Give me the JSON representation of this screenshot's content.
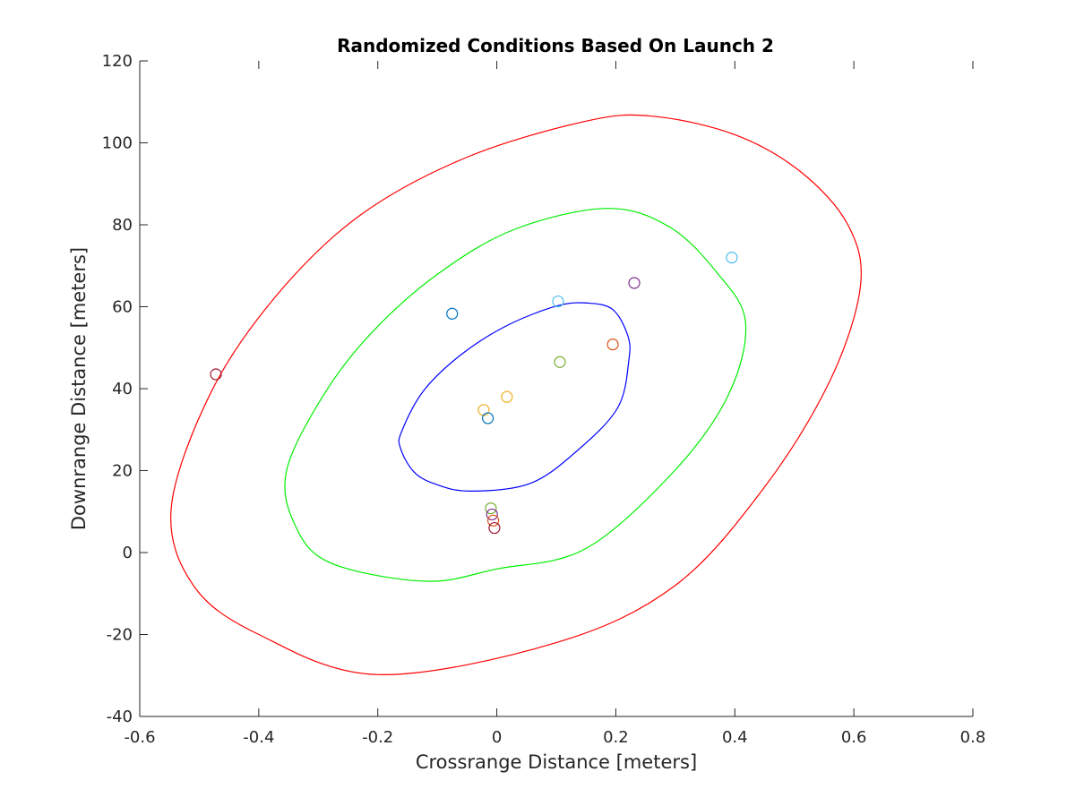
{
  "chart_data": {
    "type": "scatter",
    "title": "Randomized Conditions Based On Launch 2",
    "xlabel": "Crossrange Distance [meters]",
    "ylabel": "Downrange Distance [meters]",
    "xlim": [
      -0.6,
      0.8
    ],
    "ylim": [
      -40,
      120
    ],
    "xticks": [
      "-0.6",
      "-0.4",
      "-0.2",
      "0",
      "0.2",
      "0.4",
      "0.6",
      "0.8"
    ],
    "yticks": [
      "-40",
      "-20",
      "0",
      "20",
      "40",
      "60",
      "80",
      "100",
      "120"
    ],
    "grid": false,
    "legend": "none",
    "points": [
      {
        "x": -0.075,
        "y": 58.3,
        "color": "#0072BD"
      },
      {
        "x": 0.103,
        "y": 61.3,
        "color": "#4DBEEE"
      },
      {
        "x": 0.395,
        "y": 72.0,
        "color": "#4DBEEE"
      },
      {
        "x": 0.231,
        "y": 65.8,
        "color": "#7E2F8E"
      },
      {
        "x": 0.195,
        "y": 50.8,
        "color": "#D95319"
      },
      {
        "x": 0.106,
        "y": 46.5,
        "color": "#77AC30"
      },
      {
        "x": 0.017,
        "y": 38.0,
        "color": "#EDB120"
      },
      {
        "x": -0.022,
        "y": 34.8,
        "color": "#EDB120"
      },
      {
        "x": -0.015,
        "y": 32.8,
        "color": "#0072BD"
      },
      {
        "x": -0.472,
        "y": 43.5,
        "color": "#A2142F"
      },
      {
        "x": -0.01,
        "y": 10.8,
        "color": "#77AC30"
      },
      {
        "x": -0.008,
        "y": 9.3,
        "color": "#7E2F8E"
      },
      {
        "x": -0.006,
        "y": 7.8,
        "color": "#D95319"
      },
      {
        "x": -0.004,
        "y": 6.0,
        "color": "#A2142F"
      }
    ],
    "ellipses": [
      {
        "color": "#0000FF",
        "points": [
          [
            -0.16,
            29.5
          ],
          [
            -0.123,
            39.5
          ],
          [
            -0.06,
            48.3
          ],
          [
            0.017,
            55.4
          ],
          [
            0.101,
            60.2
          ],
          [
            0.153,
            60.9
          ],
          [
            0.195,
            59.3
          ],
          [
            0.22,
            53.0
          ],
          [
            0.222,
            47.0
          ],
          [
            0.203,
            35.3
          ],
          [
            0.133,
            24.6
          ],
          [
            0.055,
            16.8
          ],
          [
            -0.046,
            15.0
          ],
          [
            -0.105,
            16.8
          ],
          [
            -0.14,
            19.8
          ],
          [
            -0.162,
            25.5
          ],
          [
            -0.16,
            29.5
          ]
        ]
      },
      {
        "color": "#00EE00",
        "points": [
          [
            -0.353,
            20.2
          ],
          [
            -0.29,
            38.7
          ],
          [
            -0.21,
            53.7
          ],
          [
            -0.1,
            67.9
          ],
          [
            0.03,
            78.9
          ],
          [
            0.185,
            84.0
          ],
          [
            0.29,
            79.5
          ],
          [
            0.37,
            68.3
          ],
          [
            0.418,
            56.3
          ],
          [
            0.39,
            38.7
          ],
          [
            0.3,
            20.2
          ],
          [
            0.15,
            1.0
          ],
          [
            0.0,
            -4.0
          ],
          [
            -0.12,
            -7.0
          ],
          [
            -0.28,
            -2.5
          ],
          [
            -0.34,
            7.0
          ],
          [
            -0.353,
            20.2
          ]
        ]
      },
      {
        "color": "#FF0000",
        "points": [
          [
            -0.547,
            11.0
          ],
          [
            -0.48,
            39.2
          ],
          [
            -0.37,
            62.8
          ],
          [
            -0.23,
            82.3
          ],
          [
            -0.05,
            96.5
          ],
          [
            0.15,
            105.3
          ],
          [
            0.262,
            106.5
          ],
          [
            0.4,
            102.0
          ],
          [
            0.51,
            93.0
          ],
          [
            0.59,
            80.0
          ],
          [
            0.611,
            65.0
          ],
          [
            0.56,
            42.0
          ],
          [
            0.45,
            16.0
          ],
          [
            0.3,
            -8.0
          ],
          [
            0.1,
            -22.0
          ],
          [
            -0.2,
            -29.8
          ],
          [
            -0.4,
            -20.0
          ],
          [
            -0.51,
            -8.0
          ],
          [
            -0.547,
            11.0
          ]
        ]
      }
    ]
  }
}
